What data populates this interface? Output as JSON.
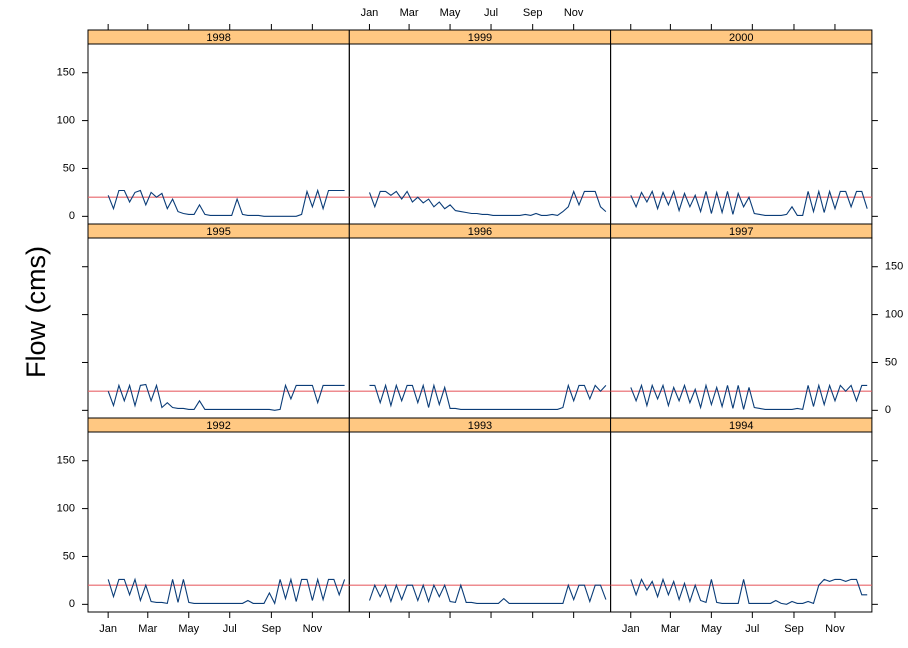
{
  "chart_data": {
    "type": "line",
    "ylabel": "Flow (cms)",
    "x": [
      1,
      9,
      17,
      25,
      33,
      41,
      49,
      57,
      65,
      73,
      81,
      89,
      97,
      105,
      113,
      121,
      129,
      137,
      145,
      153,
      161,
      169,
      177,
      185,
      193,
      201,
      209,
      217,
      225,
      233,
      241,
      249,
      257,
      265,
      273,
      281,
      289,
      297,
      305,
      313,
      321,
      329,
      337,
      345,
      353
    ],
    "xlim": [
      -29,
      360
    ],
    "xticks": [
      {
        "value": 1,
        "label": "Jan"
      },
      {
        "value": 60,
        "label": "Mar"
      },
      {
        "value": 121,
        "label": "May"
      },
      {
        "value": 182,
        "label": "Jul"
      },
      {
        "value": 244,
        "label": "Sep"
      },
      {
        "value": 305,
        "label": "Nov"
      }
    ],
    "ylim": [
      -8,
      180
    ],
    "yticks": [
      0,
      50,
      100,
      150
    ],
    "reference_line": 20,
    "reference_color": "#e8656a",
    "color": "#0b3d78",
    "strip_color": "#ffc882",
    "panels": [
      {
        "title": "1998",
        "values": [
          22,
          8,
          27,
          27,
          15,
          25,
          27,
          12,
          25,
          20,
          24,
          8,
          18,
          5,
          3,
          2,
          2,
          12,
          2,
          1,
          1,
          1,
          1,
          1,
          18,
          2,
          1,
          1,
          1,
          0,
          0,
          0,
          0,
          0,
          0,
          0,
          2,
          26,
          10,
          27,
          8,
          27,
          27,
          27,
          27
        ]
      },
      {
        "title": "1999",
        "values": [
          25,
          10,
          26,
          26,
          22,
          26,
          18,
          26,
          15,
          20,
          14,
          18,
          10,
          15,
          8,
          12,
          6,
          5,
          4,
          3,
          3,
          2,
          2,
          1,
          1,
          1,
          1,
          1,
          1,
          2,
          1,
          3,
          1,
          1,
          2,
          1,
          5,
          10,
          26,
          12,
          26,
          26,
          26,
          10,
          5
        ]
      },
      {
        "title": "2000",
        "values": [
          22,
          10,
          25,
          15,
          26,
          8,
          25,
          12,
          26,
          6,
          24,
          10,
          22,
          5,
          26,
          3,
          25,
          4,
          26,
          2,
          24,
          10,
          20,
          3,
          2,
          1,
          1,
          1,
          1,
          2,
          10,
          1,
          1,
          26,
          5,
          26,
          4,
          26,
          8,
          26,
          26,
          10,
          26,
          26,
          8
        ]
      },
      {
        "title": "1995",
        "values": [
          20,
          5,
          26,
          10,
          26,
          5,
          26,
          27,
          10,
          26,
          3,
          8,
          3,
          2,
          2,
          1,
          1,
          10,
          1,
          1,
          1,
          1,
          1,
          1,
          1,
          1,
          1,
          1,
          1,
          1,
          1,
          0,
          1,
          26,
          12,
          26,
          26,
          26,
          26,
          8,
          26,
          26,
          26,
          26,
          26
        ]
      },
      {
        "title": "1996",
        "values": [
          26,
          26,
          8,
          26,
          5,
          26,
          10,
          26,
          26,
          8,
          26,
          3,
          26,
          6,
          24,
          2,
          2,
          1,
          1,
          1,
          1,
          1,
          1,
          1,
          1,
          1,
          1,
          1,
          1,
          1,
          1,
          1,
          1,
          1,
          1,
          1,
          3,
          26,
          10,
          26,
          26,
          12,
          26,
          20,
          26
        ]
      },
      {
        "title": "1997",
        "values": [
          24,
          10,
          26,
          5,
          26,
          12,
          26,
          5,
          24,
          10,
          26,
          8,
          22,
          3,
          26,
          6,
          24,
          4,
          26,
          2,
          26,
          1,
          24,
          3,
          2,
          1,
          1,
          1,
          1,
          1,
          1,
          2,
          1,
          26,
          4,
          26,
          6,
          26,
          10,
          26,
          20,
          26,
          10,
          26,
          26
        ]
      },
      {
        "title": "1992",
        "values": [
          26,
          8,
          26,
          26,
          10,
          26,
          4,
          20,
          3,
          2,
          2,
          1,
          26,
          2,
          26,
          2,
          1,
          1,
          1,
          1,
          1,
          1,
          1,
          1,
          1,
          1,
          4,
          1,
          1,
          1,
          12,
          1,
          26,
          6,
          26,
          3,
          26,
          26,
          4,
          26,
          5,
          26,
          26,
          10,
          26
        ]
      },
      {
        "title": "1993",
        "values": [
          4,
          20,
          8,
          20,
          3,
          20,
          5,
          20,
          20,
          4,
          20,
          3,
          20,
          8,
          20,
          3,
          2,
          20,
          2,
          2,
          1,
          1,
          1,
          1,
          1,
          6,
          1,
          1,
          1,
          1,
          1,
          1,
          1,
          1,
          1,
          1,
          1,
          20,
          5,
          20,
          20,
          3,
          20,
          20,
          5
        ]
      },
      {
        "title": "1994",
        "values": [
          26,
          10,
          26,
          15,
          24,
          8,
          26,
          10,
          24,
          5,
          22,
          3,
          20,
          4,
          2,
          26,
          2,
          1,
          1,
          1,
          1,
          26,
          1,
          1,
          1,
          1,
          1,
          4,
          1,
          0,
          3,
          1,
          1,
          3,
          1,
          20,
          26,
          24,
          26,
          26,
          24,
          26,
          26,
          10,
          10
        ]
      }
    ]
  }
}
